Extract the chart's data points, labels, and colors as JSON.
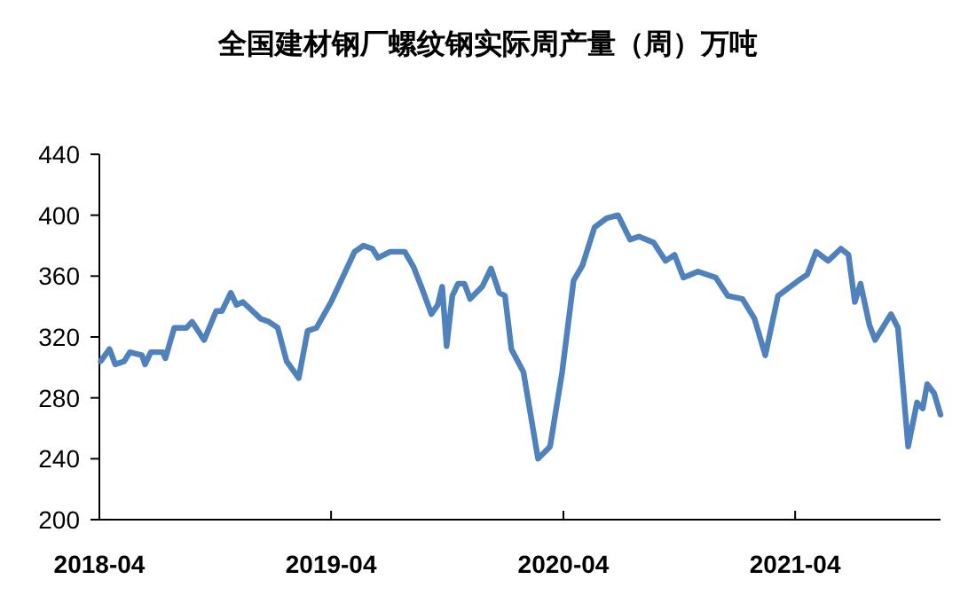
{
  "chart_data": {
    "type": "line",
    "title": "全国建材钢厂螺纹钢实际周产量（周）万吨",
    "x": [
      "2018-04-03",
      "2018-04-17",
      "2018-04-26",
      "2018-05-10",
      "2018-05-19",
      "2018-06-07",
      "2018-06-12",
      "2018-06-21",
      "2018-07-10",
      "2018-07-14",
      "2018-07-28",
      "2018-08-16",
      "2018-08-25",
      "2018-09-13",
      "2018-10-02",
      "2018-10-11",
      "2018-10-25",
      "2018-11-03",
      "2018-11-13",
      "2018-12-11",
      "2018-12-24",
      "2019-01-07",
      "2019-01-21",
      "2019-02-09",
      "2019-02-23",
      "2019-03-09",
      "2019-04-01",
      "2019-04-19",
      "2019-05-08",
      "2019-05-22",
      "2019-06-05",
      "2019-06-14",
      "2019-07-03",
      "2019-07-26",
      "2019-08-09",
      "2019-08-23",
      "2019-09-06",
      "2019-09-16",
      "2019-09-23",
      "2019-09-30",
      "2019-10-09",
      "2019-10-18",
      "2019-10-28",
      "2019-11-06",
      "2019-11-25",
      "2019-12-09",
      "2019-12-22",
      "2019-12-31",
      "2020-01-10",
      "2020-01-29",
      "2020-02-21",
      "2020-03-11",
      "2020-03-30",
      "2020-04-17",
      "2020-05-01",
      "2020-05-20",
      "2020-06-08",
      "2020-06-26",
      "2020-07-15",
      "2020-07-29",
      "2020-08-21",
      "2020-09-09",
      "2020-09-23",
      "2020-10-07",
      "2020-10-30",
      "2020-11-27",
      "2020-12-16",
      "2021-01-08",
      "2021-01-27",
      "2021-02-13",
      "2021-03-05",
      "2021-04-06",
      "2021-04-20",
      "2021-05-04",
      "2021-05-23",
      "2021-06-12",
      "2021-06-24",
      "2021-07-04",
      "2021-07-13",
      "2021-07-27",
      "2021-08-05",
      "2021-08-30",
      "2021-09-10",
      "2021-09-16",
      "2021-09-26",
      "2021-10-10",
      "2021-10-19",
      "2021-10-26",
      "2021-11-06",
      "2021-11-16"
    ],
    "values": [
      304,
      312,
      302,
      304,
      310,
      308,
      302,
      310,
      310,
      306,
      326,
      326,
      330,
      318,
      337,
      337,
      349,
      341,
      343,
      332,
      330,
      326,
      304,
      293,
      324,
      326,
      343,
      359,
      376,
      380,
      378,
      372,
      376,
      376,
      366,
      351,
      335,
      341,
      353,
      314,
      347,
      355,
      355,
      345,
      353,
      365,
      349,
      347,
      312,
      297,
      240,
      248,
      297,
      357,
      367,
      392,
      398,
      400,
      384,
      386,
      382,
      370,
      374,
      359,
      363,
      359,
      347,
      345,
      332,
      308,
      347,
      357,
      361,
      376,
      370,
      378,
      374,
      343,
      355,
      328,
      318,
      335,
      326,
      297,
      248,
      277,
      273,
      289,
      283,
      269
    ],
    "color": "#4f81bd",
    "xlim": [
      "2018-04-01",
      "2021-11-16"
    ],
    "xticks": [
      "2018-04",
      "2019-04",
      "2020-04",
      "2021-04"
    ],
    "ylim": [
      200,
      440
    ],
    "yticks": [
      200,
      240,
      280,
      320,
      360,
      400,
      440
    ],
    "grid": false,
    "marker": "none",
    "line_style": "solid"
  }
}
